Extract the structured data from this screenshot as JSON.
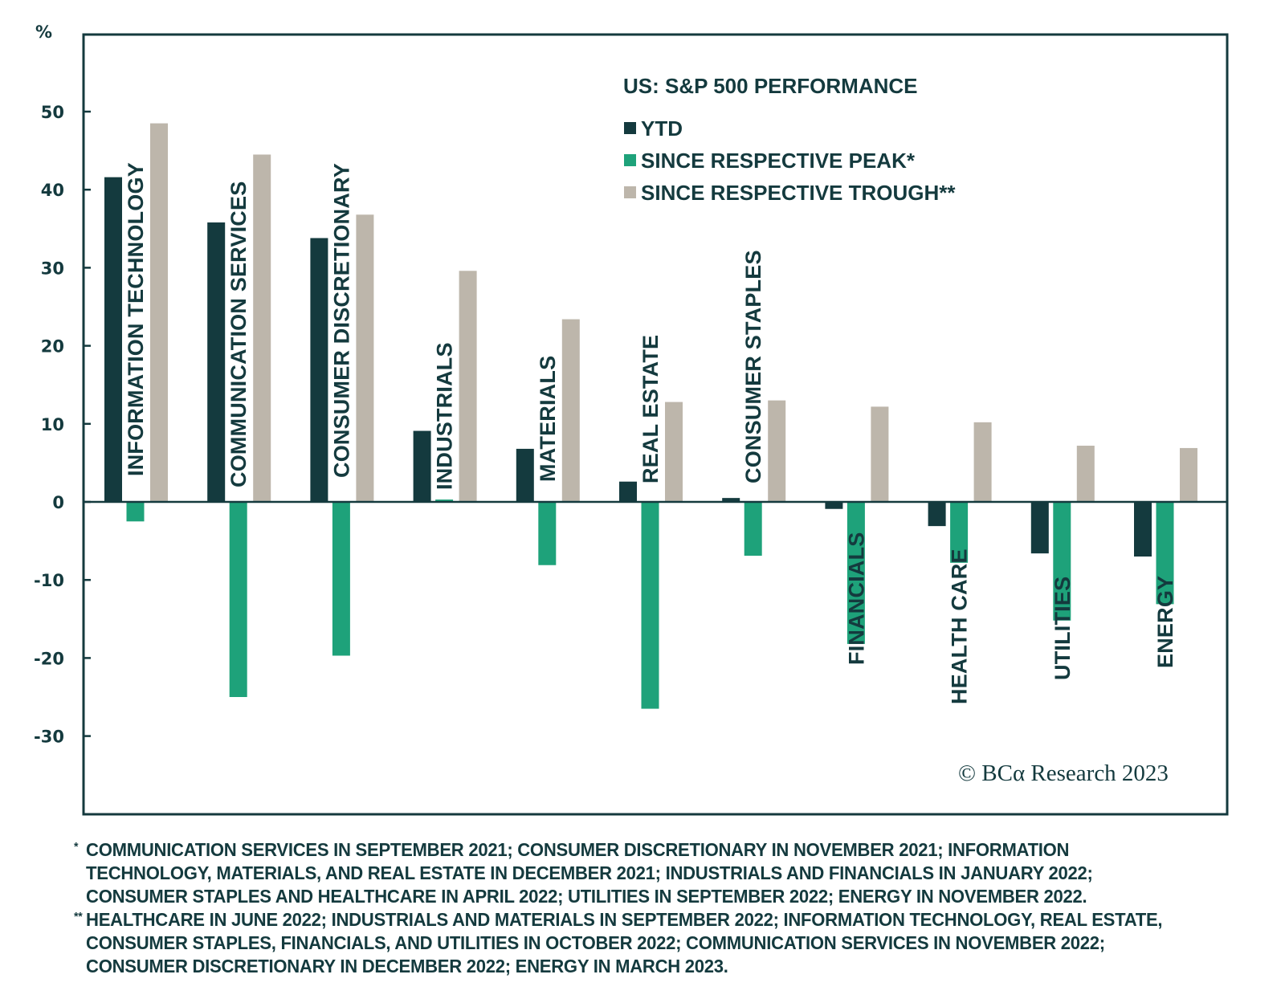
{
  "chart_data": {
    "type": "bar",
    "title": "US: S&P 500 PERFORMANCE",
    "ylabel": "%",
    "xlabel": "",
    "ylim": [
      -40,
      60
    ],
    "yticks": [
      50,
      40,
      30,
      20,
      10,
      0,
      -10,
      -20,
      -30
    ],
    "grid": false,
    "legend_position": "top-right",
    "categories": [
      "INFORMATION TECHNOLOGY",
      "COMMUNICATION SERVICES",
      "CONSUMER DISCRETIONARY",
      "INDUSTRIALS",
      "MATERIALS",
      "REAL ESTATE",
      "CONSUMER STAPLES",
      "FINANCIALS",
      "HEALTH CARE",
      "UTILITIES",
      "ENERGY"
    ],
    "series": [
      {
        "name": "YTD",
        "color": "#143a3e",
        "values": [
          41.6,
          35.8,
          33.8,
          9.1,
          6.8,
          2.6,
          0.5,
          -0.9,
          -3.1,
          -6.6,
          -7.0
        ]
      },
      {
        "name": "SINCE RESPECTIVE PEAK*",
        "color": "#1ea27a",
        "values": [
          -2.5,
          -25.0,
          -19.7,
          0.3,
          -8.1,
          -26.5,
          -6.9,
          -18.2,
          -7.8,
          -15.2,
          -13.1
        ]
      },
      {
        "name": "SINCE RESPECTIVE TROUGH**",
        "color": "#bdb6ab",
        "values": [
          48.5,
          44.5,
          36.8,
          29.6,
          23.4,
          12.8,
          13.0,
          12.2,
          10.2,
          7.2,
          6.9
        ]
      }
    ],
    "annotations": [
      "© BCα Research 2023"
    ]
  },
  "footnotes": [
    {
      "mark": "*",
      "lines": [
        "COMMUNICATION SERVICES IN SEPTEMBER 2021; CONSUMER DISCRETIONARY IN NOVEMBER 2021; INFORMATION",
        "TECHNOLOGY, MATERIALS, AND REAL ESTATE IN DECEMBER 2021; INDUSTRIALS AND FINANCIALS IN JANUARY 2022;",
        "CONSUMER STAPLES AND HEALTHCARE IN APRIL 2022; UTILITIES IN SEPTEMBER 2022; ENERGY IN NOVEMBER 2022."
      ]
    },
    {
      "mark": "**",
      "lines": [
        "HEALTHCARE IN JUNE 2022; INDUSTRIALS AND MATERIALS IN SEPTEMBER 2022; INFORMATION TECHNOLOGY, REAL ESTATE,",
        "CONSUMER STAPLES, FINANCIALS, AND UTILITIES IN OCTOBER 2022; COMMUNICATION SERVICES IN NOVEMBER 2022;",
        "CONSUMER DISCRETIONARY IN DECEMBER 2022; ENERGY IN MARCH 2023."
      ]
    }
  ]
}
